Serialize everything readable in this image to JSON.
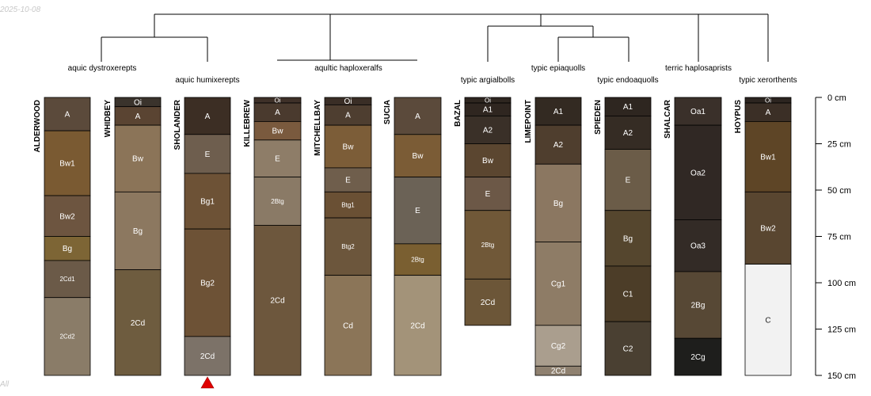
{
  "header": {
    "date": "2025-10-08"
  },
  "footer": {
    "text": "All"
  },
  "colors": {
    "line": "#000000",
    "marker": "#e00000",
    "text_dark": "#000000"
  },
  "depth_axis": {
    "max_cm": 150,
    "ticks": [
      {
        "value": 0,
        "label": "0 cm"
      },
      {
        "value": 25,
        "label": "25 cm"
      },
      {
        "value": 50,
        "label": "50 cm"
      },
      {
        "value": 75,
        "label": "75 cm"
      },
      {
        "value": 100,
        "label": "100 cm"
      },
      {
        "value": 125,
        "label": "125 cm"
      },
      {
        "value": 150,
        "label": "150 cm"
      }
    ]
  },
  "taxa": [
    {
      "label": "aquic dystroxerepts"
    },
    {
      "label": "aquic humixerepts"
    },
    {
      "label": "aqultic haploxeralfs"
    },
    {
      "label": "typic argialbolls"
    },
    {
      "label": "typic epiaquolls"
    },
    {
      "label": "typic endoaquolls"
    },
    {
      "label": "terric haplosaprists"
    },
    {
      "label": "typic xerorthents"
    }
  ],
  "profiles": [
    {
      "name": "ALDERWOOD",
      "horizons": [
        {
          "name": "A",
          "top": 0,
          "bottom": 18,
          "color": "#5b4a3b"
        },
        {
          "name": "Bw1",
          "top": 18,
          "bottom": 53,
          "color": "#7a5a32"
        },
        {
          "name": "Bw2",
          "top": 53,
          "bottom": 75,
          "color": "#6d5540"
        },
        {
          "name": "Bg",
          "top": 75,
          "bottom": 88,
          "color": "#7d6535"
        },
        {
          "name": "2Cd1",
          "top": 88,
          "bottom": 108,
          "color": "#6b5a48"
        },
        {
          "name": "2Cd2",
          "top": 108,
          "bottom": 150,
          "color": "#8a7c68"
        }
      ]
    },
    {
      "name": "WHIDBEY",
      "horizons": [
        {
          "name": "Oi",
          "top": 0,
          "bottom": 5,
          "color": "#3a332c"
        },
        {
          "name": "A",
          "top": 5,
          "bottom": 15,
          "color": "#5a4432"
        },
        {
          "name": "Bw",
          "top": 15,
          "bottom": 51,
          "color": "#8b7458"
        },
        {
          "name": "Bg",
          "top": 51,
          "bottom": 93,
          "color": "#8c7860"
        },
        {
          "name": "2Cd",
          "top": 93,
          "bottom": 150,
          "color": "#6e5c3f"
        }
      ]
    },
    {
      "name": "SHOLANDER",
      "marker": true,
      "horizons": [
        {
          "name": "A",
          "top": 0,
          "bottom": 20,
          "color": "#3c2e24"
        },
        {
          "name": "E",
          "top": 20,
          "bottom": 41,
          "color": "#6e5e4e"
        },
        {
          "name": "Bg1",
          "top": 41,
          "bottom": 71,
          "color": "#6d5236"
        },
        {
          "name": "Bg2",
          "top": 71,
          "bottom": 129,
          "color": "#6d5236"
        },
        {
          "name": "2Cd",
          "top": 129,
          "bottom": 150,
          "color": "#7c7268"
        }
      ]
    },
    {
      "name": "KILLEBREW",
      "horizons": [
        {
          "name": "Oi",
          "top": 0,
          "bottom": 3,
          "color": "#3e3028"
        },
        {
          "name": "A",
          "top": 3,
          "bottom": 13,
          "color": "#4a3a2e"
        },
        {
          "name": "Bw",
          "top": 13,
          "bottom": 23,
          "color": "#7a5a3e"
        },
        {
          "name": "E",
          "top": 23,
          "bottom": 43,
          "color": "#8e7d68"
        },
        {
          "name": "2Btg",
          "top": 43,
          "bottom": 69,
          "color": "#8a7a66"
        },
        {
          "name": "2Cd",
          "top": 69,
          "bottom": 150,
          "color": "#6d573d"
        }
      ]
    },
    {
      "name": "MITCHELLBAY",
      "horizons": [
        {
          "name": "Oi",
          "top": 0,
          "bottom": 4,
          "color": "#3a2e26"
        },
        {
          "name": "A",
          "top": 4,
          "bottom": 15,
          "color": "#4e3e30"
        },
        {
          "name": "Bw",
          "top": 15,
          "bottom": 38,
          "color": "#7c5d38"
        },
        {
          "name": "E",
          "top": 38,
          "bottom": 51,
          "color": "#6f5e4c"
        },
        {
          "name": "Btg1",
          "top": 51,
          "bottom": 65,
          "color": "#6a5034"
        },
        {
          "name": "Btg2",
          "top": 65,
          "bottom": 96,
          "color": "#6c563c"
        },
        {
          "name": "Cd",
          "top": 96,
          "bottom": 150,
          "color": "#8b7558"
        }
      ]
    },
    {
      "name": "SUCIA",
      "horizons": [
        {
          "name": "A",
          "top": 0,
          "bottom": 20,
          "color": "#5b4a3b"
        },
        {
          "name": "Bw",
          "top": 20,
          "bottom": 43,
          "color": "#7b5c36"
        },
        {
          "name": "E",
          "top": 43,
          "bottom": 79,
          "color": "#6b6256"
        },
        {
          "name": "2Btg",
          "top": 79,
          "bottom": 96,
          "color": "#7a5f31"
        },
        {
          "name": "2Cd",
          "top": 96,
          "bottom": 150,
          "color": "#a39379"
        }
      ]
    },
    {
      "name": "BAZAL",
      "horizons": [
        {
          "name": "Oi",
          "top": 0,
          "bottom": 3,
          "color": "#2e2620"
        },
        {
          "name": "A1",
          "top": 3,
          "bottom": 10,
          "color": "#2f2620"
        },
        {
          "name": "A2",
          "top": 10,
          "bottom": 25,
          "color": "#3a3028"
        },
        {
          "name": "Bw",
          "top": 25,
          "bottom": 43,
          "color": "#5b4630"
        },
        {
          "name": "E",
          "top": 43,
          "bottom": 61,
          "color": "#6c5847"
        },
        {
          "name": "2Btg",
          "top": 61,
          "bottom": 98,
          "color": "#705838"
        },
        {
          "name": "2Cd",
          "top": 98,
          "bottom": 123,
          "color": "#6c5638"
        }
      ]
    },
    {
      "name": "LIMEPOINT",
      "horizons": [
        {
          "name": "A1",
          "top": 0,
          "bottom": 15,
          "color": "#332a22"
        },
        {
          "name": "A2",
          "top": 15,
          "bottom": 36,
          "color": "#4f3e2e"
        },
        {
          "name": "Bg",
          "top": 36,
          "bottom": 78,
          "color": "#8b7761"
        },
        {
          "name": "Cg1",
          "top": 78,
          "bottom": 123,
          "color": "#8e7c66"
        },
        {
          "name": "Cg2",
          "top": 123,
          "bottom": 145,
          "color": "#aa9e8e"
        },
        {
          "name": "2Cd",
          "top": 145,
          "bottom": 150,
          "color": "#8f8170"
        }
      ]
    },
    {
      "name": "SPIEDEN",
      "horizons": [
        {
          "name": "A1",
          "top": 0,
          "bottom": 10,
          "color": "#2e2620"
        },
        {
          "name": "A2",
          "top": 10,
          "bottom": 28,
          "color": "#352c24"
        },
        {
          "name": "E",
          "top": 28,
          "bottom": 61,
          "color": "#6b5c48"
        },
        {
          "name": "Bg",
          "top": 61,
          "bottom": 91,
          "color": "#55462e"
        },
        {
          "name": "C1",
          "top": 91,
          "bottom": 121,
          "color": "#4c3d28"
        },
        {
          "name": "C2",
          "top": 121,
          "bottom": 150,
          "color": "#4a4032"
        }
      ]
    },
    {
      "name": "SHALCAR",
      "horizons": [
        {
          "name": "Oa1",
          "top": 0,
          "bottom": 15,
          "color": "#3a302a"
        },
        {
          "name": "Oa2",
          "top": 15,
          "bottom": 66,
          "color": "#302824"
        },
        {
          "name": "Oa3",
          "top": 66,
          "bottom": 94,
          "color": "#332b26"
        },
        {
          "name": "2Bg",
          "top": 94,
          "bottom": 130,
          "color": "#574835"
        },
        {
          "name": "2Cg",
          "top": 130,
          "bottom": 150,
          "color": "#1e1e1c"
        }
      ]
    },
    {
      "name": "HOYPUS",
      "horizons": [
        {
          "name": "Oi",
          "top": 0,
          "bottom": 3,
          "color": "#2c2520"
        },
        {
          "name": "A",
          "top": 3,
          "bottom": 13,
          "color": "#3b2f26"
        },
        {
          "name": "Bw1",
          "top": 13,
          "bottom": 51,
          "color": "#5e4526"
        },
        {
          "name": "Bw2",
          "top": 51,
          "bottom": 90,
          "color": "#594630"
        },
        {
          "name": "C",
          "top": 90,
          "bottom": 150,
          "color": "#f2f2f2"
        }
      ]
    }
  ]
}
